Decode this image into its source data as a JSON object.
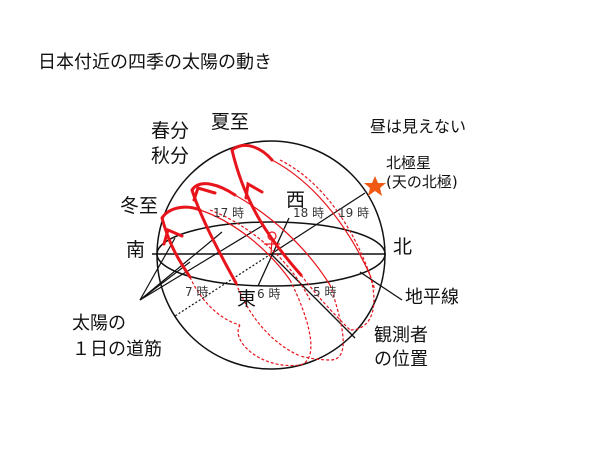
{
  "title": "日本付近の四季の太陽の動き",
  "labels": {
    "spring_autumn_1": "春分",
    "spring_autumn_2": "秋分",
    "summer": "夏至",
    "winter": "冬至",
    "no_daytime": "昼は見えない",
    "polaris_1": "北極星",
    "polaris_2": "(天の北極)",
    "south": "南",
    "north": "北",
    "west": "西",
    "east": "東",
    "horizon": "地平線",
    "observer_1": "観測者",
    "observer_2": "の位置",
    "sun_path_1": "太陽の",
    "sun_path_2": "１日の道筋"
  },
  "times": {
    "t17": "17 時",
    "t18": "18 時",
    "t19": "19 時",
    "t7": "7 時",
    "t6": "6 時",
    "t5": "5 時"
  },
  "colors": {
    "sun_path": "#e8141c",
    "polaris_star": "#f05a14",
    "line": "#111111"
  }
}
